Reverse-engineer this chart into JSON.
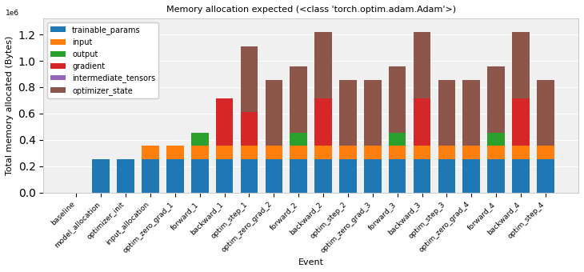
{
  "title": "Memory allocation expected (<class 'torch.optim.adam.Adam'>)",
  "xlabel": "Event",
  "ylabel": "Total memory allocated (Bytes)",
  "categories": [
    "baseline",
    "model_allocation",
    "optimizer_init",
    "input_allocation",
    "optim_zero_grad_1",
    "forward_1",
    "backward_1",
    "optim_step_1",
    "optim_zero_grad_2",
    "forward_2",
    "backward_2",
    "optim_step_2",
    "optim_zero_grad_3",
    "forward_3",
    "backward_3",
    "optim_step_3",
    "optim_zero_grad_4",
    "forward_4",
    "backward_4",
    "optim_step_4"
  ],
  "series": {
    "trainable_params": [
      0,
      256000,
      256000,
      256000,
      256000,
      256000,
      256000,
      256000,
      256000,
      256000,
      256000,
      256000,
      256000,
      256000,
      256000,
      256000,
      256000,
      256000,
      256000,
      256000
    ],
    "input": [
      0,
      0,
      0,
      100000,
      100000,
      100000,
      100000,
      100000,
      100000,
      100000,
      100000,
      100000,
      100000,
      100000,
      100000,
      100000,
      100000,
      100000,
      100000,
      100000
    ],
    "output": [
      0,
      0,
      0,
      0,
      0,
      100000,
      0,
      0,
      0,
      100000,
      0,
      0,
      0,
      100000,
      0,
      0,
      0,
      100000,
      0,
      0
    ],
    "gradient": [
      0,
      0,
      0,
      0,
      0,
      0,
      360000,
      256000,
      0,
      0,
      360000,
      0,
      0,
      0,
      360000,
      0,
      0,
      0,
      360000,
      0
    ],
    "intermediate_tensors": [
      0,
      0,
      0,
      0,
      0,
      0,
      0,
      0,
      0,
      0,
      0,
      0,
      0,
      0,
      0,
      0,
      0,
      0,
      0,
      0
    ],
    "optimizer_state": [
      0,
      0,
      0,
      0,
      0,
      0,
      0,
      500000,
      500000,
      500000,
      500000,
      500000,
      500000,
      500000,
      500000,
      500000,
      500000,
      500000,
      500000,
      500000
    ]
  },
  "colors": {
    "trainable_params": "#1f77b4",
    "input": "#ff7f0e",
    "output": "#2ca02c",
    "gradient": "#d62728",
    "intermediate_tensors": "#9467bd",
    "optimizer_state": "#8c564b"
  },
  "ylim": [
    0,
    1320000.0
  ],
  "yticks": [
    0.0,
    0.2,
    0.4,
    0.6,
    0.8,
    1.0,
    1.2
  ],
  "bar_width": 0.7,
  "figsize": [
    7.3,
    3.4
  ],
  "dpi": 100,
  "title_fontsize": 8,
  "axis_label_fontsize": 8,
  "tick_fontsize": 6.5,
  "legend_fontsize": 7
}
